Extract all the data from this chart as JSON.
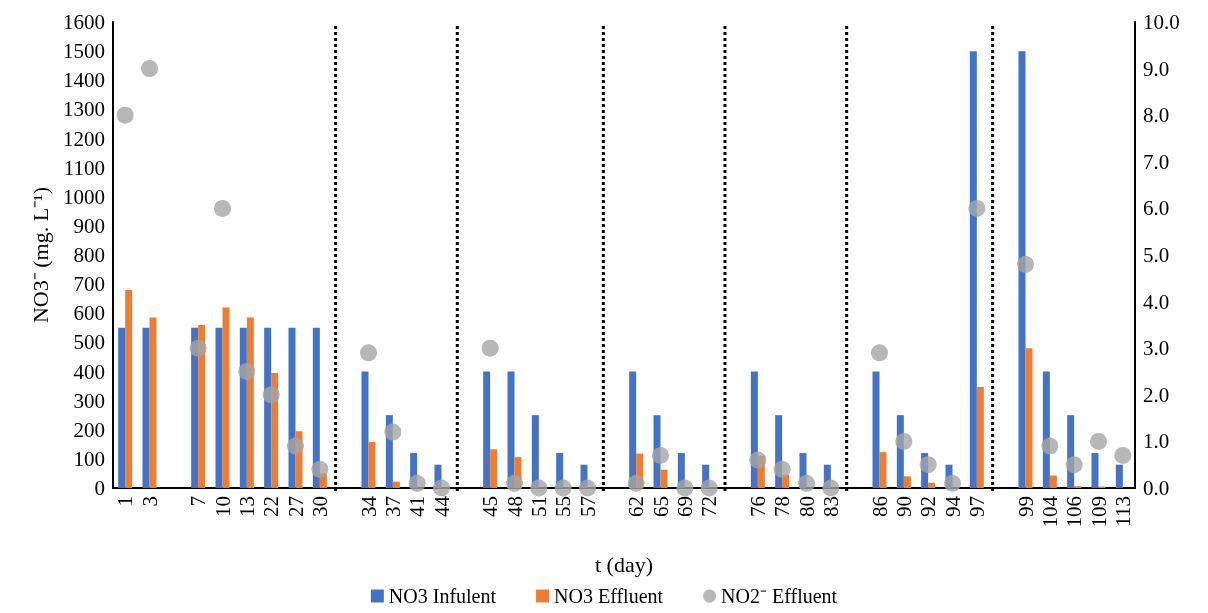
{
  "chart_data": {
    "type": "bar",
    "xlabel": "t (day)",
    "ylabel": "NO3⁻ (mg. L⁻¹)",
    "categories": [
      "1",
      "3",
      null,
      "7",
      "10",
      "13",
      "22",
      "27",
      "30",
      null,
      "34",
      "37",
      "41",
      "44",
      null,
      "45",
      "48",
      "51",
      "55",
      "57",
      null,
      "62",
      "65",
      "69",
      "72",
      null,
      "76",
      "78",
      "80",
      "83",
      null,
      "86",
      "90",
      "92",
      "94",
      "97",
      null,
      "99",
      "104",
      "106",
      "109",
      "113"
    ],
    "series": [
      {
        "name": "NO3 Infulent",
        "color": "#4472c4",
        "values": [
          550,
          550,
          null,
          550,
          550,
          550,
          550,
          550,
          550,
          null,
          400,
          250,
          120,
          80,
          null,
          400,
          400,
          250,
          120,
          80,
          null,
          400,
          250,
          120,
          80,
          null,
          400,
          250,
          120,
          80,
          null,
          400,
          250,
          120,
          80,
          1500,
          null,
          1500,
          400,
          250,
          120,
          80
        ]
      },
      {
        "name": "NO3 Effluent",
        "color": "#ed7d31",
        "values": [
          680,
          585,
          null,
          560,
          620,
          585,
          395,
          195,
          50,
          null,
          158,
          22,
          0,
          0,
          null,
          133,
          106,
          0,
          0,
          0,
          null,
          118,
          63,
          0,
          0,
          null,
          110,
          45,
          0,
          0,
          null,
          123,
          40,
          18,
          0,
          347,
          null,
          480,
          43,
          6,
          5,
          0
        ]
      },
      {
        "name": "NO2⁻ Effluent",
        "type": "scatter",
        "axis": "y2",
        "color": "#a5a5a5",
        "values": [
          8.0,
          9.0,
          null,
          3.0,
          6.0,
          2.5,
          2.0,
          0.9,
          0.4,
          null,
          2.9,
          1.2,
          0.1,
          0.0,
          null,
          3.0,
          0.1,
          0.0,
          0.0,
          0.0,
          null,
          0.1,
          0.7,
          0.0,
          0.0,
          null,
          0.6,
          0.4,
          0.1,
          0.0,
          null,
          2.9,
          1.0,
          0.5,
          0.1,
          6.0,
          null,
          4.8,
          0.9,
          0.5,
          1.0,
          0.7
        ]
      }
    ],
    "ylim": [
      0,
      1600
    ],
    "yticks": [
      0,
      100,
      200,
      300,
      400,
      500,
      600,
      700,
      800,
      900,
      1000,
      1100,
      1200,
      1300,
      1400,
      1500,
      1600
    ],
    "y2lim": [
      0,
      10
    ],
    "y2ticks": [
      {
        "value": 0,
        "label": "0.0"
      },
      {
        "value": 1,
        "label": "1.0"
      },
      {
        "value": 2,
        "label": "2.0"
      },
      {
        "value": 3,
        "label": "3.0"
      },
      {
        "value": 4,
        "label": "4.0"
      },
      {
        "value": 5,
        "label": "5.0"
      },
      {
        "value": 6,
        "label": "6.0"
      },
      {
        "value": 7,
        "label": "7.0"
      },
      {
        "value": 8,
        "label": "8.0"
      },
      {
        "value": 9,
        "label": "9.0"
      },
      {
        "value": 10,
        "label": "10.0"
      }
    ],
    "grid": false,
    "legend": "bottom",
    "marker": "circle"
  }
}
